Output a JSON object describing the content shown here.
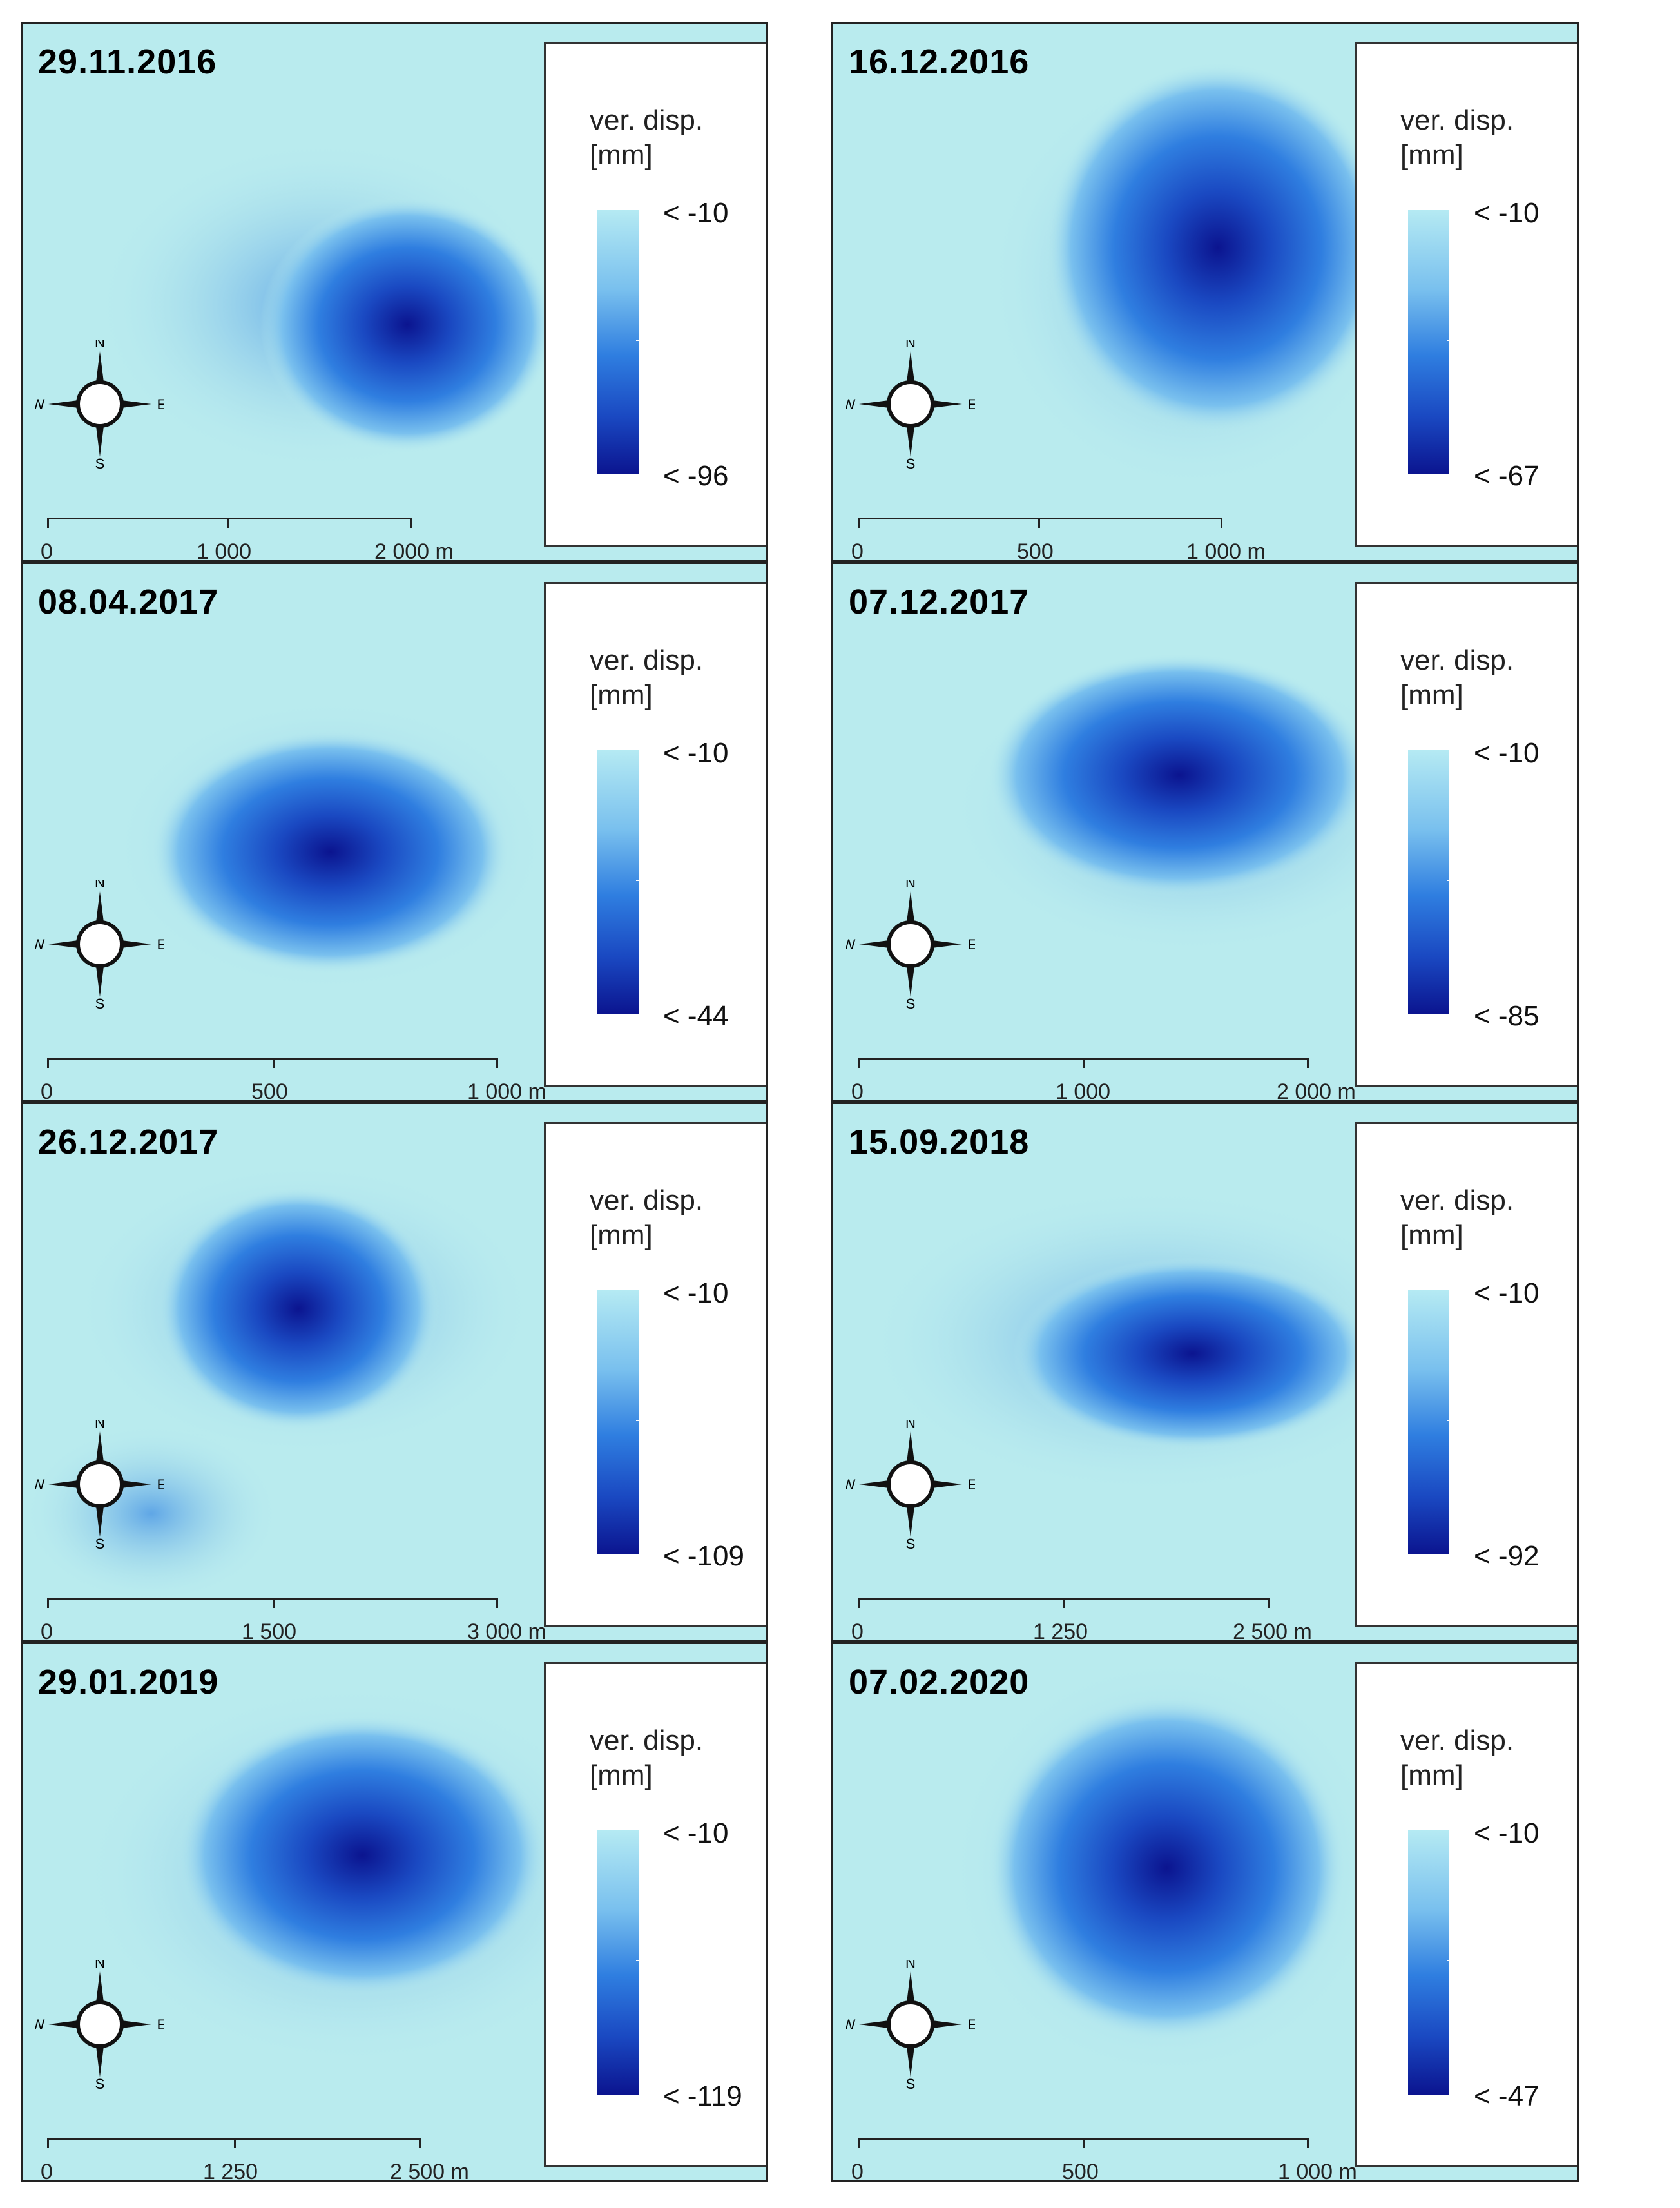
{
  "legend_title_line1": "ver. disp.",
  "legend_title_line2": "[mm]",
  "compass": {
    "n": "N",
    "s": "S",
    "w": "W",
    "e": "E"
  },
  "colors": {
    "background": "#b9ebee",
    "light": "#b5eaf3",
    "mid": "#2f7ee0",
    "dark": "#0b148f"
  },
  "panels": [
    {
      "date": "29.11.2016",
      "legend_top": "< -10",
      "legend_bottom": "< -96",
      "scale": [
        "0",
        "1 000",
        "2 000 m"
      ]
    },
    {
      "date": "16.12.2016",
      "legend_top": "< -10",
      "legend_bottom": "< -67",
      "scale": [
        "0",
        "500",
        "1 000 m"
      ]
    },
    {
      "date": "08.04.2017",
      "legend_top": "< -10",
      "legend_bottom": "< -44",
      "scale": [
        "0",
        "500",
        "1 000 m"
      ]
    },
    {
      "date": "07.12.2017",
      "legend_top": "< -10",
      "legend_bottom": "< -85",
      "scale": [
        "0",
        "1 000",
        "2 000 m"
      ]
    },
    {
      "date": "26.12.2017",
      "legend_top": "< -10",
      "legend_bottom": "< -109",
      "scale": [
        "0",
        "1 500",
        "3 000 m"
      ]
    },
    {
      "date": "15.09.2018",
      "legend_top": "< -10",
      "legend_bottom": "< -92",
      "scale": [
        "0",
        "1 250",
        "2 500 m"
      ]
    },
    {
      "date": "29.01.2019",
      "legend_top": "< -10",
      "legend_bottom": "< -119",
      "scale": [
        "0",
        "1 250",
        "2 500 m"
      ]
    },
    {
      "date": "07.02.2020",
      "legend_top": "< -10",
      "legend_bottom": "< -47",
      "scale": [
        "0",
        "500",
        "1 000 m"
      ]
    }
  ]
}
